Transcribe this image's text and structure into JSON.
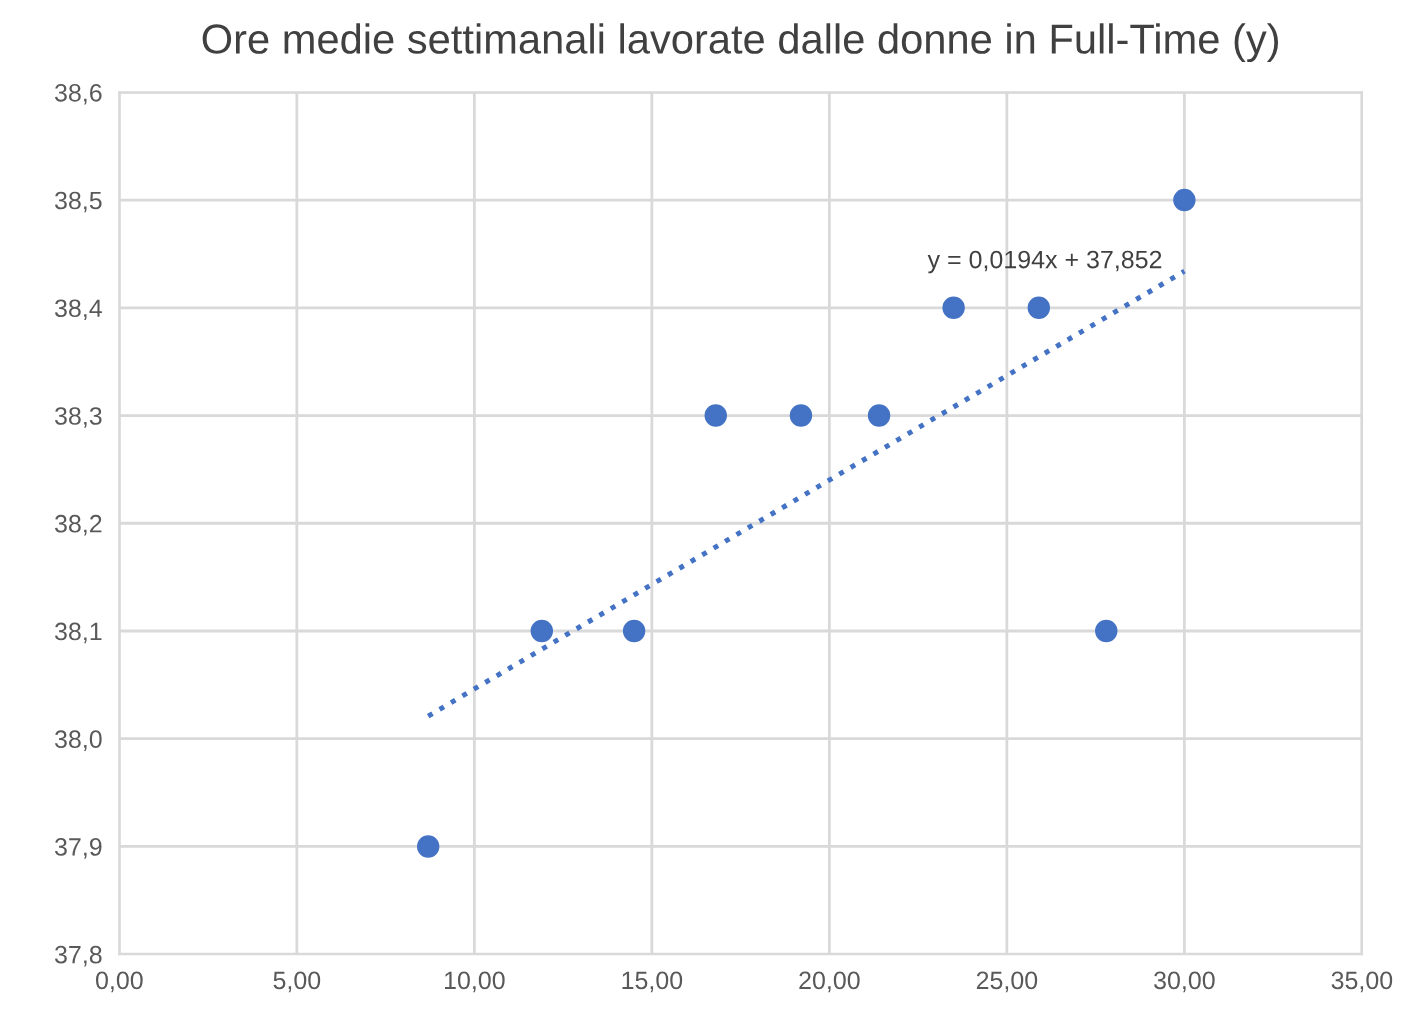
{
  "chart_data": {
    "type": "scatter",
    "title": "Ore medie settimanali lavorate dalle donne in Full-Time (y)",
    "series": [
      {
        "color": "#4472c4",
        "marker": "circle",
        "x": [
          8.7,
          11.9,
          14.5,
          16.8,
          19.2,
          21.4,
          23.5,
          25.9,
          27.8,
          30.0
        ],
        "values": [
          37.9,
          38.1,
          38.1,
          38.3,
          38.3,
          38.3,
          38.4,
          38.4,
          38.1,
          38.5
        ]
      },
      {
        "type": "line",
        "color": "#4472c4",
        "line_style": "dotted",
        "marker": "none",
        "x": [
          8.7,
          30.0
        ],
        "values": [
          38.021,
          38.434
        ]
      }
    ],
    "annotations": [
      "y = 0,0194x + 37,852"
    ],
    "xlim": [
      0,
      35
    ],
    "xticks": [
      {
        "value": 0,
        "label": "0,00"
      },
      {
        "value": 5,
        "label": "5,00"
      },
      {
        "value": 10,
        "label": "10,00"
      },
      {
        "value": 15,
        "label": "15,00"
      },
      {
        "value": 20,
        "label": "20,00"
      },
      {
        "value": 25,
        "label": "25,00"
      },
      {
        "value": 30,
        "label": "30,00"
      },
      {
        "value": 35,
        "label": "35,00"
      }
    ],
    "ylim": [
      37.8,
      38.6
    ],
    "yticks": [
      {
        "value": 37.8,
        "label": "37,8"
      },
      {
        "value": 37.9,
        "label": "37,9"
      },
      {
        "value": 38.0,
        "label": "38,0"
      },
      {
        "value": 38.1,
        "label": "38,1"
      },
      {
        "value": 38.2,
        "label": "38,2"
      },
      {
        "value": 38.3,
        "label": "38,3"
      },
      {
        "value": 38.4,
        "label": "38,4"
      },
      {
        "value": 38.5,
        "label": "38,5"
      },
      {
        "value": 38.6,
        "label": "38,6"
      }
    ],
    "grid": true
  }
}
